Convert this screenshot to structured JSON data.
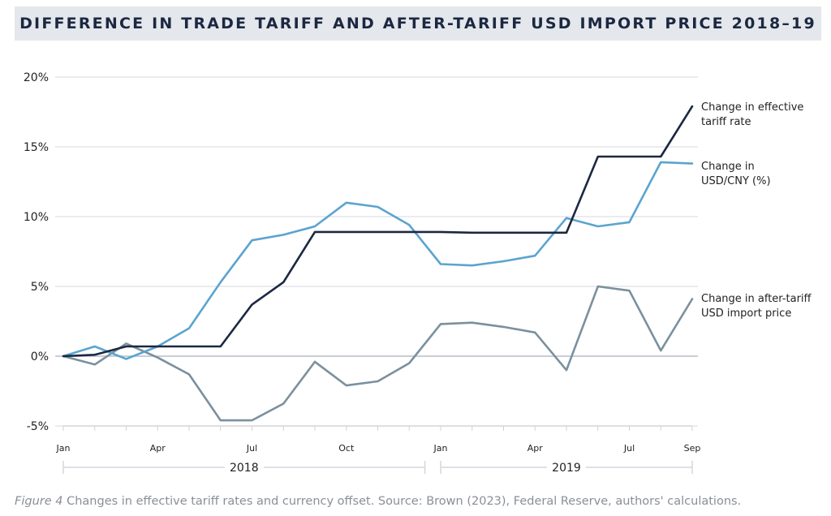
{
  "title": "DIFFERENCE IN TRADE TARIFF AND AFTER-TARIFF USD IMPORT PRICE 2018–19",
  "caption": {
    "figure": "Figure 4",
    "text": " Changes in effective tariff rates and currency offset. Source: Brown (2023), Federal Reserve, authors' calculations."
  },
  "chart_data": {
    "type": "line",
    "x": [
      "2018-01",
      "2018-02",
      "2018-03",
      "2018-04",
      "2018-05",
      "2018-06",
      "2018-07",
      "2018-08",
      "2018-09",
      "2018-10",
      "2018-11",
      "2018-12",
      "2019-01",
      "2019-02",
      "2019-03",
      "2019-04",
      "2019-05",
      "2019-06",
      "2019-07",
      "2019-08",
      "2019-09"
    ],
    "x_tick_labels": [
      {
        "x": "2018-01",
        "label": "Jan"
      },
      {
        "x": "2018-04",
        "label": "Apr"
      },
      {
        "x": "2018-07",
        "label": "Jul"
      },
      {
        "x": "2018-10",
        "label": "Oct"
      },
      {
        "x": "2019-01",
        "label": "Jan"
      },
      {
        "x": "2019-04",
        "label": "Apr"
      },
      {
        "x": "2019-07",
        "label": "Jul"
      },
      {
        "x": "2019-09",
        "label": "Sep"
      }
    ],
    "year_labels": [
      {
        "label": "2018",
        "from": "2018-01",
        "to": "2018-12"
      },
      {
        "label": "2019",
        "from": "2019-01",
        "to": "2019-09"
      }
    ],
    "y_ticks": [
      -5,
      0,
      5,
      10,
      15,
      20
    ],
    "y_tick_labels": [
      "-5%",
      "0%",
      "5%",
      "10%",
      "15%",
      "20%"
    ],
    "ylim": [
      -5,
      20
    ],
    "grid": true,
    "series": [
      {
        "name": "Change in effective tariff rate",
        "label_lines": [
          "Change in effective",
          "tariff rate"
        ],
        "color": "#1c2841",
        "values": [
          0,
          0.1,
          0.7,
          0.7,
          0.7,
          0.7,
          3.7,
          5.3,
          8.9,
          8.9,
          8.9,
          8.9,
          8.9,
          8.85,
          8.85,
          8.85,
          8.85,
          14.3,
          14.3,
          14.3,
          17.9
        ]
      },
      {
        "name": "Change in USD/CNY (%)",
        "label_lines": [
          "Change in",
          "USD/CNY (%)"
        ],
        "color": "#5ba4cf",
        "values": [
          0,
          0.7,
          -0.2,
          0.7,
          2.0,
          5.3,
          8.3,
          8.7,
          9.3,
          11.0,
          10.7,
          9.4,
          6.6,
          6.5,
          6.8,
          7.2,
          9.9,
          9.3,
          9.6,
          13.9,
          13.8
        ]
      },
      {
        "name": "Change in after-tariff USD import price",
        "label_lines": [
          "Change in after-tariff",
          "USD import price"
        ],
        "color": "#7b909f",
        "values": [
          0,
          -0.6,
          0.9,
          -0.1,
          -1.3,
          -4.6,
          -4.6,
          -3.4,
          -0.4,
          -2.1,
          -1.8,
          -0.5,
          2.3,
          2.4,
          2.1,
          1.7,
          -1.0,
          5.0,
          4.7,
          0.4,
          4.1
        ]
      }
    ]
  }
}
